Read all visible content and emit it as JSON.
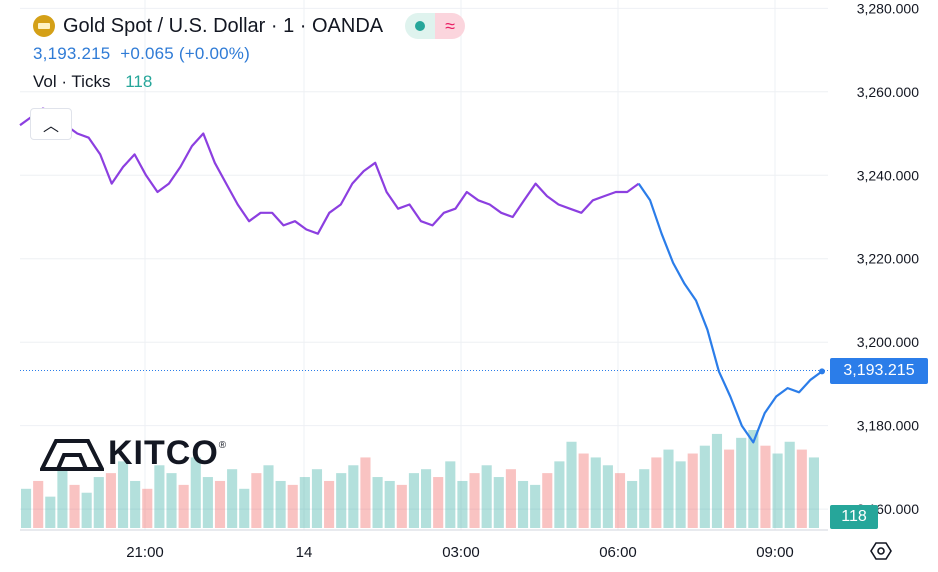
{
  "header": {
    "symbol_title": "Gold Spot / U.S. Dollar · 1 · OANDA",
    "price_line": "3,193.215",
    "change_line": "+0.065 (+0.00%)",
    "vol_label": "Vol · Ticks",
    "vol_value": "118"
  },
  "colors": {
    "line_purple": "#8c3fe0",
    "line_blue": "#2b7de9",
    "vol_up": "#26a69a",
    "vol_down": "#ef5350",
    "grid": "#eef0f4",
    "price_tag": "#2b7de9",
    "vol_tag": "#26a69a"
  },
  "icons": {
    "symbol": "gold-coin-icon",
    "collapse": "chevron-up-icon",
    "settings": "settings-hexagon-icon"
  },
  "branding": {
    "logo_text": "KITCO",
    "logo_mark": "®"
  },
  "tags": {
    "last_price": "3,193.215",
    "last_volume": "118"
  },
  "chart_data": {
    "type": "line",
    "title": "Gold Spot / U.S. Dollar · 1 · OANDA",
    "x_ticks": [
      "21:00",
      "14",
      "03:00",
      "06:00",
      "09:00"
    ],
    "y_ticks": [
      "3,280.000",
      "3,260.000",
      "3,240.000",
      "3,220.000",
      "3,200.000",
      "3,180.000",
      "3,160.000"
    ],
    "ylim": [
      3155,
      3282
    ],
    "grid": true,
    "last_price": 3193.215,
    "series": [
      {
        "values": [
          3252,
          3254,
          3256,
          3255,
          3252,
          3250,
          3249,
          3245,
          3238,
          3242,
          3245,
          3240,
          3236,
          3238,
          3242,
          3247,
          3250,
          3243,
          3238,
          3233,
          3229,
          3231,
          3231,
          3228,
          3229,
          3227,
          3226,
          3231,
          3233,
          3238,
          3241,
          3243,
          3236,
          3232,
          3233,
          3229,
          3228,
          3231,
          3232,
          3236,
          3234,
          3233,
          3231,
          3230,
          3234,
          3238,
          3235,
          3233,
          3232,
          3231,
          3234,
          3235,
          3236,
          3236,
          3238
        ]
      },
      {
        "values": [
          3238,
          3234,
          3226,
          3219,
          3214,
          3210,
          3203,
          3193,
          3187,
          3180,
          3176,
          3183,
          3187,
          3189,
          3188,
          3191,
          3193
        ]
      }
    ],
    "volume": [
      10,
      12,
      8,
      15,
      11,
      9,
      13,
      14,
      17,
      12,
      10,
      16,
      14,
      11,
      18,
      13,
      12,
      15,
      10,
      14,
      16,
      12,
      11,
      13,
      15,
      12,
      14,
      16,
      18,
      13,
      12,
      11,
      14,
      15,
      13,
      17,
      12,
      14,
      16,
      13,
      15,
      12,
      11,
      14,
      17,
      22,
      19,
      18,
      16,
      14,
      12,
      15,
      18,
      20,
      17,
      19,
      21,
      24,
      20,
      23,
      25,
      21,
      19,
      22,
      20,
      18
    ]
  }
}
